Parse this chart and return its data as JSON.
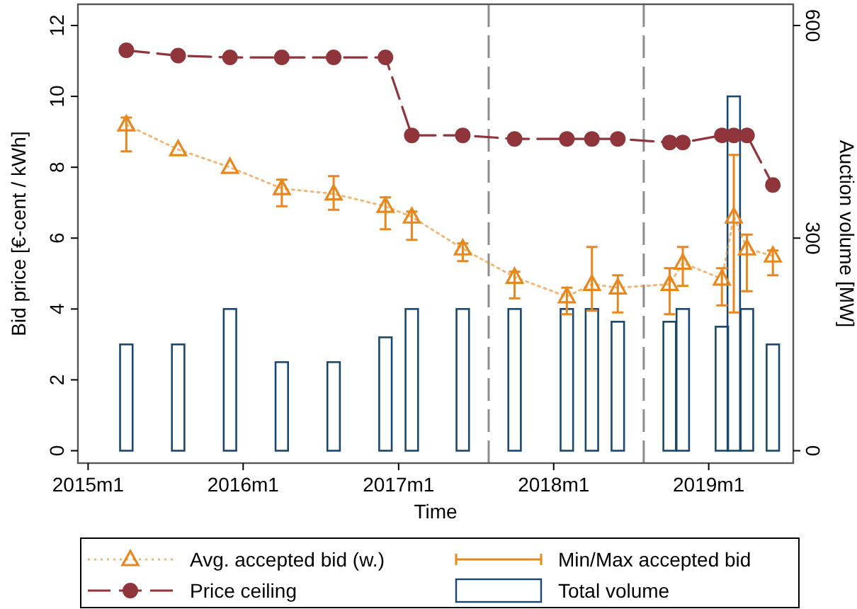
{
  "chart_data": {
    "type": "line",
    "xlabel": "Time",
    "ylabel": "Bid price [€-cent / kWh]",
    "y2label": "Auction volume [MW]",
    "xlim": [
      "2014-12-08",
      "2019-07-19"
    ],
    "xticks": [
      {
        "value": "2015-01",
        "label": "2015m1"
      },
      {
        "value": "2016-01",
        "label": "2016m1"
      },
      {
        "value": "2017-01",
        "label": "2017m1"
      },
      {
        "value": "2018-01",
        "label": "2018m1"
      },
      {
        "value": "2019-01",
        "label": "2019m1"
      }
    ],
    "ylim": [
      -0.35,
      12.6
    ],
    "yticks": [
      0,
      2,
      4,
      6,
      8,
      10,
      12
    ],
    "y2lim": [
      -17.5,
      630
    ],
    "y2ticks": [
      0,
      300,
      600
    ],
    "grid": false,
    "legend": "bottom",
    "ref_lines": [
      {
        "axis": "x",
        "value": "2017-08",
        "color": "#8c8c8c",
        "line_style": "dashed"
      },
      {
        "axis": "x",
        "value": "2018-08",
        "color": "#8c8c8c",
        "line_style": "dashed"
      }
    ],
    "annotations": [
      "Min/Max accepted bid"
    ],
    "series": [
      {
        "name": "Total volume",
        "type": "bar",
        "axis": "y2",
        "color": "#1a476f",
        "x": [
          "2015-04",
          "2015-08",
          "2015-12",
          "2016-04",
          "2016-08",
          "2016-12",
          "2017-02",
          "2017-06",
          "2017-10",
          "2018-02",
          "2018-04",
          "2018-06",
          "2018-10",
          "2018-11",
          "2019-02",
          "2019-03",
          "2019-04",
          "2019-06"
        ],
        "values": [
          150,
          150,
          200,
          125,
          125,
          160,
          200,
          200,
          200,
          200,
          200,
          182,
          182,
          200,
          175,
          500,
          200,
          150
        ]
      },
      {
        "name": "Price ceiling",
        "color": "#90353b",
        "marker": "circle",
        "line_style": "dashed",
        "x": [
          "2015-04",
          "2015-08",
          "2015-12",
          "2016-04",
          "2016-08",
          "2016-12",
          "2017-02",
          "2017-06",
          "2017-10",
          "2018-02",
          "2018-04",
          "2018-06",
          "2018-10",
          "2018-11",
          "2019-02",
          "2019-03",
          "2019-04",
          "2019-06"
        ],
        "values": [
          11.3,
          11.15,
          11.1,
          11.1,
          11.1,
          11.1,
          8.9,
          8.9,
          8.8,
          8.8,
          8.8,
          8.8,
          8.7,
          8.7,
          8.9,
          8.9,
          8.9,
          7.5
        ]
      },
      {
        "name": "Avg. accepted bid (w.)",
        "color": "#e8871e",
        "marker": "triangle",
        "line_style": "dotted",
        "x": [
          "2015-04",
          "2015-08",
          "2015-12",
          "2016-04",
          "2016-08",
          "2016-12",
          "2017-02",
          "2017-06",
          "2017-10",
          "2018-02",
          "2018-04",
          "2018-06",
          "2018-10",
          "2018-11",
          "2019-02",
          "2019-03",
          "2019-04",
          "2019-06"
        ],
        "values": [
          9.2,
          8.5,
          8.0,
          7.4,
          7.25,
          6.9,
          6.6,
          5.7,
          4.9,
          4.35,
          4.7,
          4.6,
          4.7,
          5.3,
          4.85,
          6.6,
          5.7,
          5.5
        ],
        "errors": [
          [
            8.45,
            9.4
          ],
          null,
          null,
          [
            6.9,
            7.65
          ],
          [
            6.8,
            7.75
          ],
          [
            6.25,
            7.15
          ],
          [
            5.95,
            6.75
          ],
          [
            5.35,
            5.85
          ],
          [
            4.3,
            5.05
          ],
          [
            3.85,
            4.6
          ],
          [
            3.95,
            5.75
          ],
          [
            3.9,
            4.95
          ],
          [
            3.85,
            5.15
          ],
          [
            4.65,
            5.75
          ],
          [
            4.1,
            5.15
          ],
          [
            3.9,
            8.35
          ],
          [
            4.5,
            6.1
          ],
          [
            4.95,
            5.65
          ]
        ]
      }
    ]
  }
}
